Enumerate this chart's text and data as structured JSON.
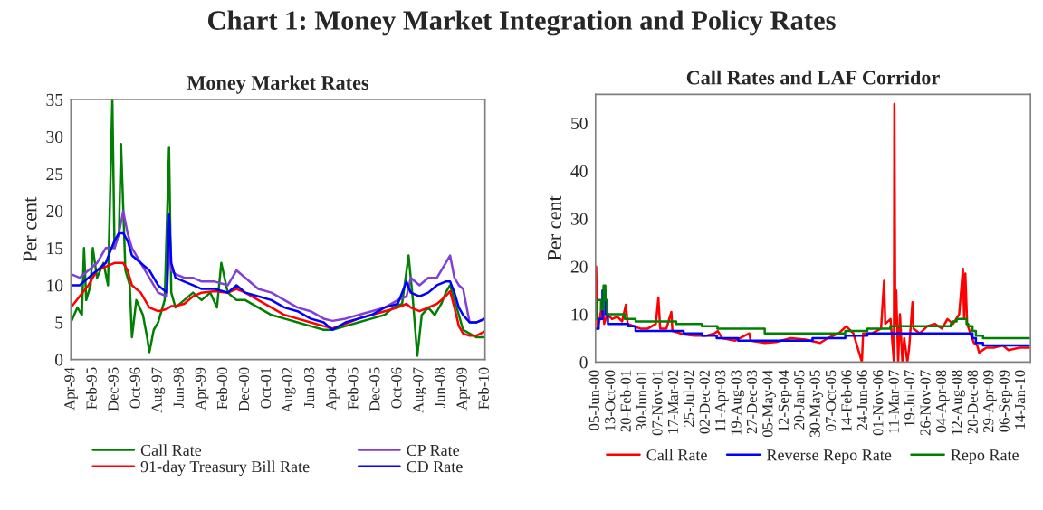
{
  "chart_data": [
    {
      "type": "line",
      "title": "Chart 1: Money Market Integration and Policy Rates",
      "subtitle": "Money Market Rates",
      "ylabel": "Per cent",
      "x": [
        "1994-04",
        "1994-08",
        "1994-12",
        "1995-04",
        "1995-08",
        "1995-12",
        "1996-02",
        "1996-04",
        "1996-06",
        "1996-08",
        "1996-12",
        "1997-04",
        "1997-08",
        "1997-12",
        "1998-01",
        "1998-02",
        "1998-04",
        "1998-08",
        "1998-12",
        "1999-04",
        "1999-10",
        "2000-04",
        "2000-08",
        "2000-12",
        "2001-06",
        "2001-12",
        "2002-06",
        "2002-12",
        "2003-06",
        "2003-12",
        "2004-04",
        "2004-10",
        "2005-04",
        "2005-10",
        "2006-04",
        "2006-10",
        "2007-02",
        "2007-04",
        "2007-08",
        "2007-12",
        "2008-04",
        "2008-08",
        "2008-10",
        "2008-12",
        "2009-02",
        "2009-04",
        "2009-07",
        "2009-10",
        "2010-02"
      ],
      "series": [
        {
          "name": "Call Rate",
          "color": "#008000",
          "x": [
            "1994-04",
            "1994-07",
            "1994-09",
            "1994-10",
            "1994-11",
            "1995-01",
            "1995-02",
            "1995-04",
            "1995-07",
            "1995-09",
            "1995-11",
            "1995-12",
            "1996-02",
            "1996-03",
            "1996-05",
            "1996-07",
            "1996-08",
            "1996-10",
            "1997-01",
            "1997-03",
            "1997-04",
            "1997-06",
            "1997-08",
            "1997-11",
            "1998-01",
            "1998-02",
            "1998-04",
            "1998-08",
            "1998-12",
            "1999-04",
            "1999-08",
            "1999-11",
            "2000-01",
            "2000-04",
            "2000-08",
            "2000-12",
            "2001-06",
            "2001-12",
            "2002-06",
            "2002-12",
            "2003-06",
            "2003-12",
            "2004-04",
            "2004-10",
            "2005-04",
            "2005-10",
            "2006-04",
            "2006-08",
            "2006-12",
            "2007-03",
            "2007-05",
            "2007-07",
            "2007-09",
            "2007-12",
            "2008-03",
            "2008-06",
            "2008-08",
            "2008-10",
            "2008-12",
            "2009-02",
            "2009-04",
            "2009-07",
            "2009-10",
            "2010-02"
          ],
          "values": [
            5,
            7,
            6,
            15,
            8,
            10,
            15,
            11,
            13,
            10,
            35,
            15,
            17,
            29,
            12,
            10,
            3,
            8,
            6,
            3,
            1,
            4,
            5,
            8,
            28.5,
            9,
            7,
            8,
            9,
            8,
            9,
            7,
            13,
            9,
            8,
            8,
            7,
            6,
            5.5,
            5,
            4.5,
            4,
            4,
            4.5,
            5,
            5.5,
            6,
            7,
            7.5,
            14,
            8,
            0.5,
            6,
            7,
            6,
            7.5,
            9,
            10,
            8,
            6,
            4,
            3.5,
            3,
            3
          ]
        },
        {
          "name": "91-day Treasury Bill Rate",
          "color": "#ff0000",
          "values": [
            7,
            8.5,
            10,
            12,
            12.5,
            13,
            13,
            13,
            12,
            10,
            9,
            7,
            6.5,
            6.8,
            7,
            7.2,
            7.2,
            7.5,
            8.5,
            9,
            9.2,
            9,
            9.5,
            9,
            8,
            7,
            6,
            5.5,
            5,
            4.5,
            4.2,
            4.8,
            5.5,
            6,
            6.5,
            7,
            7.5,
            7,
            6.5,
            7,
            7.5,
            8.5,
            9.2,
            7,
            4.5,
            3.5,
            3.2,
            3.2,
            3.8
          ]
        },
        {
          "name": "CP Rate",
          "color": "#7f3fd8",
          "values": [
            11.5,
            11,
            12,
            13,
            15,
            15,
            17,
            20,
            17,
            15,
            13,
            11,
            9,
            8.5,
            15,
            12,
            11.5,
            11,
            11,
            10.5,
            10.5,
            10,
            12,
            11,
            9.5,
            9,
            8,
            7,
            6.5,
            5.5,
            5.2,
            5.5,
            6,
            6.5,
            7,
            8,
            8.5,
            11,
            10,
            11,
            11,
            13,
            14,
            11,
            10,
            9.5,
            5,
            5,
            5.5
          ]
        },
        {
          "name": "CD Rate",
          "color": "#0000ff",
          "values": [
            10,
            10,
            11,
            12,
            13,
            16,
            17,
            17,
            16,
            14,
            13,
            12,
            10,
            9,
            19.5,
            13,
            11,
            10.5,
            10,
            9.5,
            9.5,
            9,
            10,
            9,
            8.5,
            8,
            7,
            6.5,
            5.5,
            5,
            4,
            5,
            5.5,
            6,
            7,
            7.5,
            10.5,
            9,
            8.5,
            9,
            10,
            10.5,
            10.5,
            9,
            7,
            6,
            5,
            5,
            5.5
          ]
        }
      ],
      "xlim": [
        "1994-04",
        "2010-02"
      ],
      "xticks": [
        {
          "value": "1994-04",
          "label": "Apr-94"
        },
        {
          "value": "1995-02",
          "label": "Feb-95"
        },
        {
          "value": "1995-12",
          "label": "Dec-95"
        },
        {
          "value": "1996-10",
          "label": "Oct-96"
        },
        {
          "value": "1997-08",
          "label": "Aug-97"
        },
        {
          "value": "1998-06",
          "label": "Jun-98"
        },
        {
          "value": "1999-04",
          "label": "Apr-99"
        },
        {
          "value": "2000-02",
          "label": "Feb-00"
        },
        {
          "value": "2000-12",
          "label": "Dec-00"
        },
        {
          "value": "2001-10",
          "label": "Oct-01"
        },
        {
          "value": "2002-08",
          "label": "Aug-02"
        },
        {
          "value": "2003-06",
          "label": "Jun-03"
        },
        {
          "value": "2004-04",
          "label": "Apr-04"
        },
        {
          "value": "2005-02",
          "label": "Feb-05"
        },
        {
          "value": "2005-12",
          "label": "Dec-05"
        },
        {
          "value": "2006-10",
          "label": "Oct-06"
        },
        {
          "value": "2007-08",
          "label": "Aug-07"
        },
        {
          "value": "2008-06",
          "label": "Jun-08"
        },
        {
          "value": "2009-04",
          "label": "Apr-09"
        },
        {
          "value": "2010-02",
          "label": "Feb-10"
        }
      ],
      "ylim": [
        0,
        35
      ],
      "yticks": [
        0,
        5,
        10,
        15,
        20,
        25,
        30,
        35
      ],
      "grid": false,
      "legend": "bottom",
      "line_style": "solid",
      "marker": "none"
    },
    {
      "type": "line",
      "title": "Call Rates and LAF Corridor",
      "ylabel": "Per cent",
      "series": [
        {
          "name": "Call Rate",
          "color": "#ff0000",
          "x": [
            "2000-06-05",
            "2000-06-10",
            "2000-06-20",
            "2000-07-10",
            "2000-08-01",
            "2000-08-15",
            "2000-09-10",
            "2000-10-20",
            "2000-12-01",
            "2001-01-10",
            "2001-02-10",
            "2001-02-25",
            "2001-04-15",
            "2001-06-10",
            "2001-08-10",
            "2001-10-15",
            "2001-11-05",
            "2001-11-20",
            "2002-01-10",
            "2002-02-20",
            "2002-03-01",
            "2002-06-01",
            "2002-09-01",
            "2002-12-01",
            "2003-02-10",
            "2003-03-10",
            "2003-04-15",
            "2003-08-01",
            "2003-11-25",
            "2003-12-05",
            "2004-04-01",
            "2004-07-01",
            "2004-11-01",
            "2005-03-01",
            "2005-07-01",
            "2005-09-01",
            "2005-12-01",
            "2006-02-01",
            "2006-04-01",
            "2006-06-10",
            "2006-06-20",
            "2006-09-01",
            "2006-11-15",
            "2006-12-10",
            "2006-12-20",
            "2007-02-01",
            "2007-03-01",
            "2007-03-05",
            "2007-03-12",
            "2007-03-20",
            "2007-04-05",
            "2007-04-20",
            "2007-05-10",
            "2007-05-25",
            "2007-06-20",
            "2007-07-05",
            "2007-08-01",
            "2007-08-10",
            "2007-10-01",
            "2007-12-01",
            "2008-02-01",
            "2008-04-01",
            "2008-05-15",
            "2008-07-01",
            "2008-08-20",
            "2008-09-20",
            "2008-09-30",
            "2008-10-10",
            "2008-10-25",
            "2008-11-20",
            "2008-12-20",
            "2009-01-15",
            "2009-02-01",
            "2009-04-01",
            "2009-06-01",
            "2009-08-15",
            "2009-10-01",
            "2010-01-01",
            "2010-03-20"
          ],
          "values": [
            10,
            20,
            7,
            9,
            13,
            8,
            10,
            9,
            9.5,
            8.5,
            12,
            8,
            7.5,
            7,
            7,
            8,
            13.5,
            7,
            7,
            10.5,
            6.5,
            5.8,
            5.5,
            5.5,
            6,
            6.5,
            5,
            4.5,
            6,
            4.5,
            4,
            4.2,
            5,
            4.7,
            4,
            5,
            6,
            7.5,
            6,
            0,
            6,
            6,
            7,
            17,
            8,
            9,
            0,
            54,
            8,
            15,
            0,
            10,
            0,
            5,
            0,
            3,
            12.5,
            7,
            6,
            7.5,
            8,
            7,
            9,
            8,
            10,
            19.5,
            9,
            18.5,
            8,
            6,
            4,
            3.5,
            2,
            3,
            3,
            3.5,
            2.5,
            3,
            3
          ]
        },
        {
          "name": "Reverse Repo Rate",
          "type": "step",
          "color": "#0000ff",
          "x": [
            "2000-06-05",
            "2000-07-01",
            "2000-08-01",
            "2000-08-25",
            "2000-09-15",
            "2001-03-01",
            "2001-05-01",
            "2002-06-01",
            "2002-11-01",
            "2003-03-01",
            "2003-08-25",
            "2005-04-29",
            "2006-01-24",
            "2006-07-25",
            "2008-12-08",
            "2009-01-05",
            "2009-03-05",
            "2010-03-20"
          ],
          "values": [
            7,
            9,
            15,
            10,
            8,
            7.5,
            6.5,
            6,
            5.5,
            5,
            4.5,
            5,
            5.5,
            6,
            5,
            4,
            3.5,
            3.5
          ]
        },
        {
          "name": "Repo Rate",
          "type": "step",
          "color": "#008000",
          "x": [
            "2000-06-05",
            "2000-06-20",
            "2000-07-20",
            "2000-08-10",
            "2000-08-25",
            "2000-09-10",
            "2001-02-01",
            "2001-05-01",
            "2002-04-01",
            "2002-10-30",
            "2003-03-07",
            "2004-03-31",
            "2006-01-24",
            "2006-07-25",
            "2007-01-31",
            "2008-06-12",
            "2008-06-25",
            "2008-07-30",
            "2008-10-20",
            "2008-11-03",
            "2008-12-08",
            "2009-01-05",
            "2009-03-05",
            "2010-03-20"
          ],
          "values": [
            9,
            13,
            11,
            16,
            13,
            10,
            9,
            8.5,
            8,
            7.5,
            7,
            6,
            6.5,
            7,
            7.5,
            8,
            8.5,
            9,
            8,
            7.5,
            6.5,
            5.5,
            5,
            5
          ]
        }
      ],
      "xlim": [
        "2000-06-05",
        "2010-03-31"
      ],
      "xticks": [
        {
          "value": "2000-06-05",
          "label": "05-Jun-00"
        },
        {
          "value": "2000-10-13",
          "label": "13-Oct-00"
        },
        {
          "value": "2001-02-20",
          "label": "20-Feb-01"
        },
        {
          "value": "2001-06-30",
          "label": "30-Jun-01"
        },
        {
          "value": "2001-11-07",
          "label": "07-Nov-01"
        },
        {
          "value": "2002-03-17",
          "label": "17-Mar-02"
        },
        {
          "value": "2002-07-25",
          "label": "25-Jul-02"
        },
        {
          "value": "2002-12-02",
          "label": "02-Dec-02"
        },
        {
          "value": "2003-04-11",
          "label": "11-Apr-03"
        },
        {
          "value": "2003-08-19",
          "label": "19-Aug-03"
        },
        {
          "value": "2003-12-27",
          "label": "27-Dec-03"
        },
        {
          "value": "2004-05-05",
          "label": "05-May-04"
        },
        {
          "value": "2004-09-12",
          "label": "12-Sep-04"
        },
        {
          "value": "2005-01-20",
          "label": "20-Jan-05"
        },
        {
          "value": "2005-05-30",
          "label": "30-May-05"
        },
        {
          "value": "2005-10-07",
          "label": "07-Oct-05"
        },
        {
          "value": "2006-02-14",
          "label": "14-Feb-06"
        },
        {
          "value": "2006-06-24",
          "label": "24-Jun-06"
        },
        {
          "value": "2006-11-01",
          "label": "01-Nov-06"
        },
        {
          "value": "2007-03-11",
          "label": "11-Mar-07"
        },
        {
          "value": "2007-07-19",
          "label": "19-Jul-07"
        },
        {
          "value": "2007-11-26",
          "label": "26-Nov-07"
        },
        {
          "value": "2008-04-04",
          "label": "04-Apr-08"
        },
        {
          "value": "2008-08-12",
          "label": "12-Aug-08"
        },
        {
          "value": "2008-12-20",
          "label": "20-Dec-08"
        },
        {
          "value": "2009-04-29",
          "label": "29-Apr-09"
        },
        {
          "value": "2009-09-06",
          "label": "06-Sep-09"
        },
        {
          "value": "2010-01-14",
          "label": "14-Jan-10"
        }
      ],
      "ylim": [
        0,
        56
      ],
      "yticks": [
        0,
        10,
        20,
        30,
        40,
        50
      ],
      "grid": false,
      "legend": "bottom",
      "line_style": "solid",
      "marker": "none"
    }
  ]
}
